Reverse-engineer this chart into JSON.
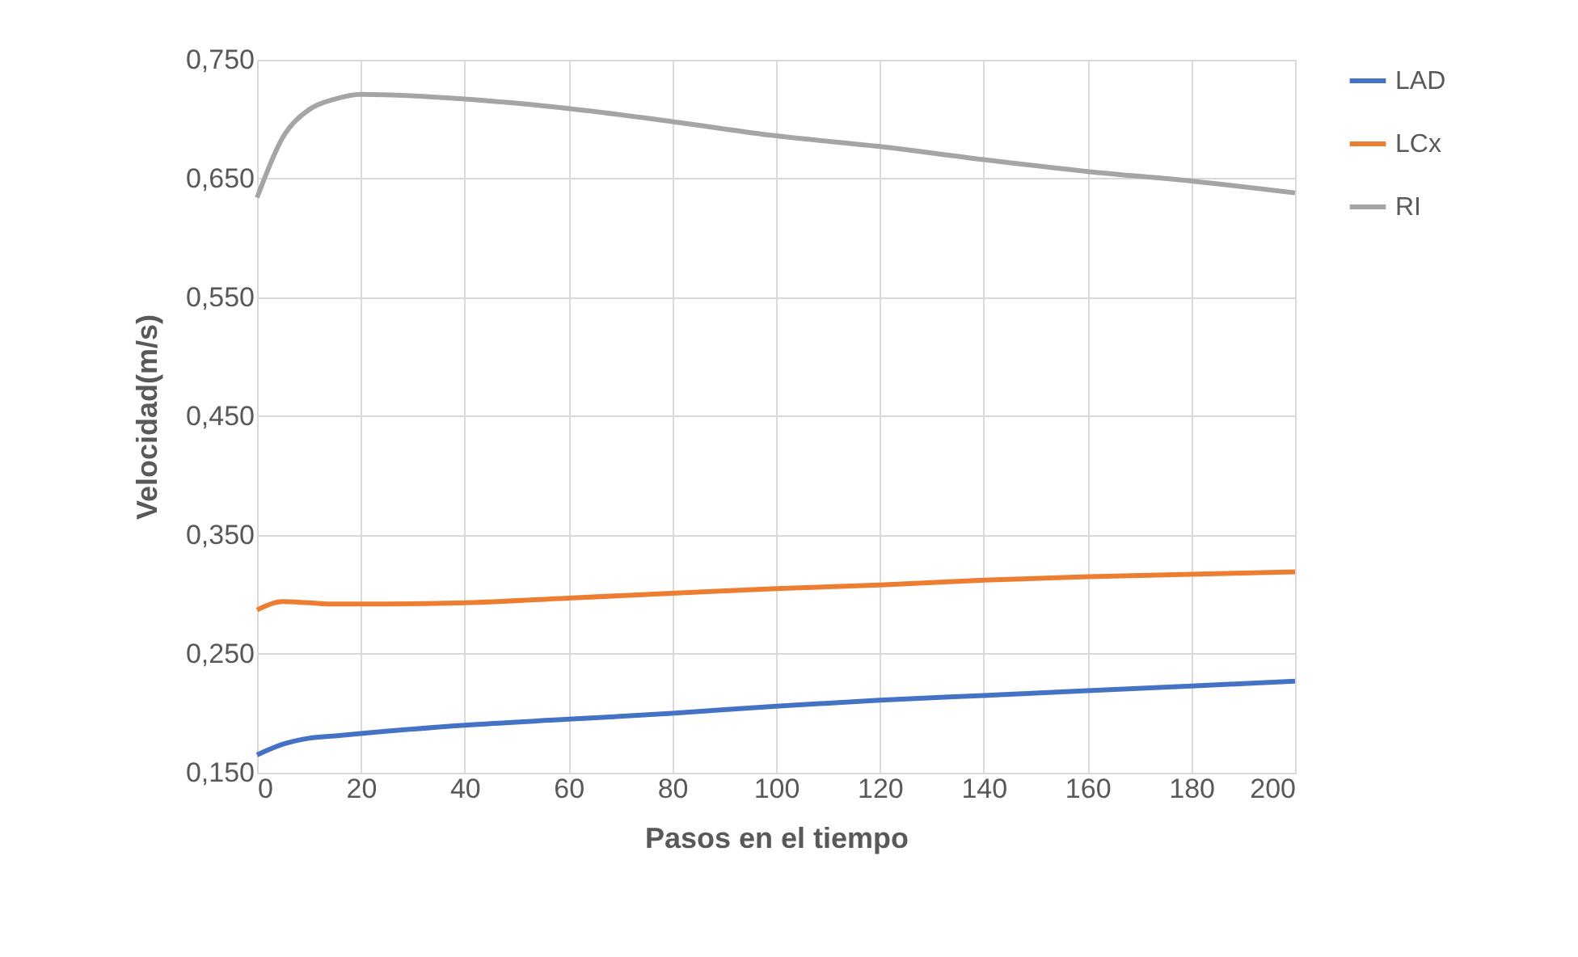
{
  "chart_data": {
    "type": "line",
    "xlabel": "Pasos en el tiempo",
    "ylabel": "Velocidad(m/s)",
    "xlim": [
      0,
      200
    ],
    "xticks": [
      0,
      20,
      40,
      60,
      80,
      100,
      120,
      140,
      160,
      180,
      200
    ],
    "ylim": [
      0.15,
      0.75
    ],
    "yticks": [
      {
        "value": 0.15,
        "label": "0,150"
      },
      {
        "value": 0.25,
        "label": "0,250"
      },
      {
        "value": 0.35,
        "label": "0,350"
      },
      {
        "value": 0.45,
        "label": "0,450"
      },
      {
        "value": 0.55,
        "label": "0,550"
      },
      {
        "value": 0.65,
        "label": "0,650"
      },
      {
        "value": 0.75,
        "label": "0,750"
      }
    ],
    "grid": true,
    "legend": "right",
    "marker": "none",
    "line_style": "solid",
    "x": [
      0,
      5,
      10,
      15,
      20,
      40,
      60,
      80,
      100,
      120,
      140,
      160,
      180,
      200
    ],
    "series": [
      {
        "name": "LAD",
        "color": "#4472c4",
        "values": [
          0.165,
          0.174,
          0.179,
          0.181,
          0.183,
          0.19,
          0.195,
          0.2,
          0.206,
          0.211,
          0.215,
          0.219,
          0.223,
          0.227
        ]
      },
      {
        "name": "LCx",
        "color": "#ed7d31",
        "values": [
          0.287,
          0.294,
          0.293,
          0.292,
          0.292,
          0.293,
          0.297,
          0.301,
          0.305,
          0.308,
          0.312,
          0.315,
          0.317,
          0.319
        ]
      },
      {
        "name": "RI",
        "color": "#a5a5a5",
        "values": [
          0.634,
          0.685,
          0.708,
          0.717,
          0.721,
          0.717,
          0.709,
          0.698,
          0.686,
          0.677,
          0.666,
          0.656,
          0.648,
          0.638
        ]
      }
    ]
  }
}
